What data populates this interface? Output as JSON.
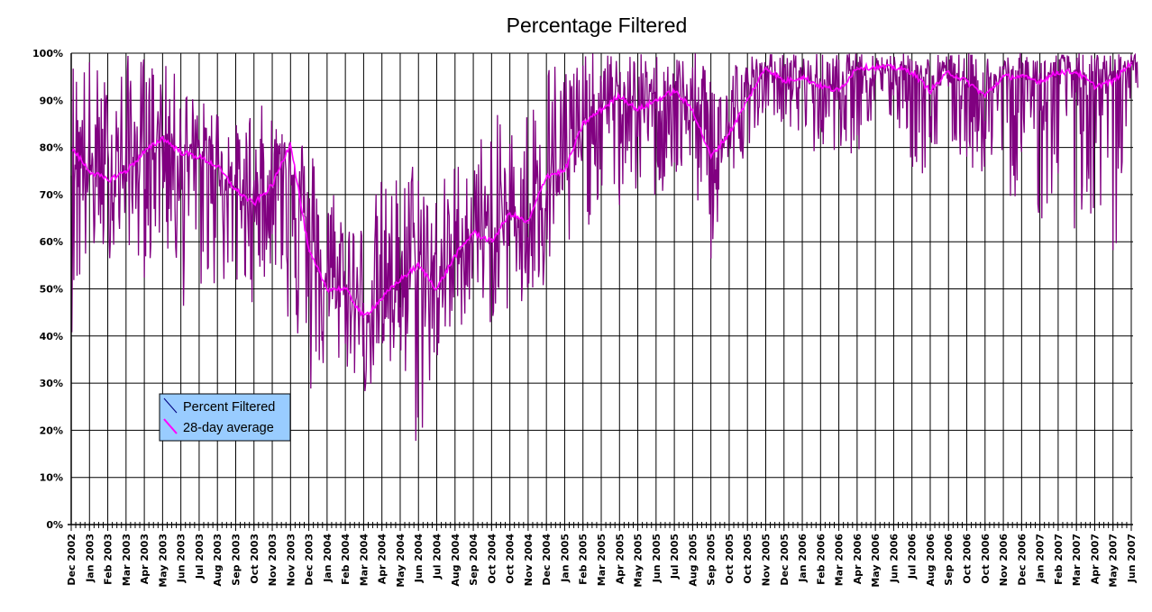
{
  "chart_data": {
    "type": "line",
    "title": "Percentage Filtered",
    "xlabel": "",
    "ylabel": "",
    "ylim": [
      0,
      100
    ],
    "yticks": [
      "0%",
      "10%",
      "20%",
      "30%",
      "40%",
      "50%",
      "60%",
      "70%",
      "80%",
      "90%",
      "100%"
    ],
    "grid": true,
    "legend_position": "lower-left",
    "categories": [
      "Dec 2002",
      "Jan 2003",
      "Feb 2003",
      "Mar 2003",
      "Apr 2003",
      "May 2003",
      "Jun 2003",
      "Jul 2003",
      "Aug 2003",
      "Sep 2003",
      "Oct 2003",
      "Nov 2003",
      "Nov 2003",
      "Dec 2003",
      "Jan 2004",
      "Feb 2004",
      "Mar 2004",
      "Apr 2004",
      "May 2004",
      "Jun 2004",
      "Jul 2004",
      "Aug 2004",
      "Sep 2004",
      "Oct 2004",
      "Oct 2004",
      "Nov 2004",
      "Dec 2004",
      "Jan 2005",
      "Feb 2005",
      "Mar 2005",
      "Apr 2005",
      "May 2005",
      "Jun 2005",
      "Jul 2005",
      "Aug 2005",
      "Sep 2005",
      "Oct 2005",
      "Oct 2005",
      "Nov 2005",
      "Dec 2005",
      "Jan 2006",
      "Feb 2006",
      "Mar 2006",
      "Apr 2006",
      "May 2006",
      "Jun 2006",
      "Jul 2006",
      "Aug 2006",
      "Sep 2006",
      "Oct 2006",
      "Oct 2006",
      "Nov 2006",
      "Dec 2006",
      "Jan 2007",
      "Feb 2007",
      "Mar 2007",
      "Apr 2007",
      "May 2007",
      "Jun 2007"
    ],
    "days_per_category": 28,
    "series": [
      {
        "name": "Percent Filtered",
        "color": "#800080",
        "note": "daily values; per-period low/high range",
        "low": [
          40,
          55,
          56,
          60,
          52,
          60,
          45,
          48,
          50,
          48,
          47,
          55,
          40,
          25,
          32,
          33,
          27,
          30,
          30,
          13,
          33,
          38,
          48,
          42,
          45,
          43,
          48,
          55,
          60,
          70,
          65,
          70,
          68,
          70,
          72,
          55,
          70,
          80,
          88,
          85,
          80,
          77,
          80,
          78,
          85,
          85,
          75,
          72,
          80,
          75,
          74,
          68,
          70,
          63,
          68,
          62,
          60,
          50,
          92
        ],
        "high": [
          100,
          100,
          95,
          100,
          100,
          98,
          95,
          90,
          90,
          85,
          90,
          88,
          88,
          82,
          75,
          70,
          65,
          74,
          75,
          80,
          72,
          78,
          80,
          88,
          85,
          90,
          100,
          100,
          100,
          100,
          100,
          100,
          100,
          100,
          100,
          100,
          100,
          100,
          100,
          100,
          100,
          100,
          100,
          100,
          100,
          100,
          100,
          100,
          100,
          100,
          100,
          100,
          100,
          100,
          100,
          100,
          100,
          100,
          100
        ]
      },
      {
        "name": "28-day average",
        "color": "#ff00ff",
        "values": [
          80,
          75,
          73,
          75,
          79,
          82,
          79,
          78,
          76,
          71,
          68,
          72,
          81,
          58,
          50,
          50,
          44,
          48,
          52,
          55,
          50,
          57,
          62,
          60,
          66,
          64,
          74,
          75,
          85,
          88,
          91,
          88,
          90,
          92,
          88,
          78,
          83,
          90,
          97,
          94,
          95,
          93,
          92,
          97,
          97,
          97,
          96,
          92,
          96,
          94,
          91,
          95,
          95,
          94,
          96,
          96,
          93,
          94,
          98
        ]
      }
    ]
  }
}
